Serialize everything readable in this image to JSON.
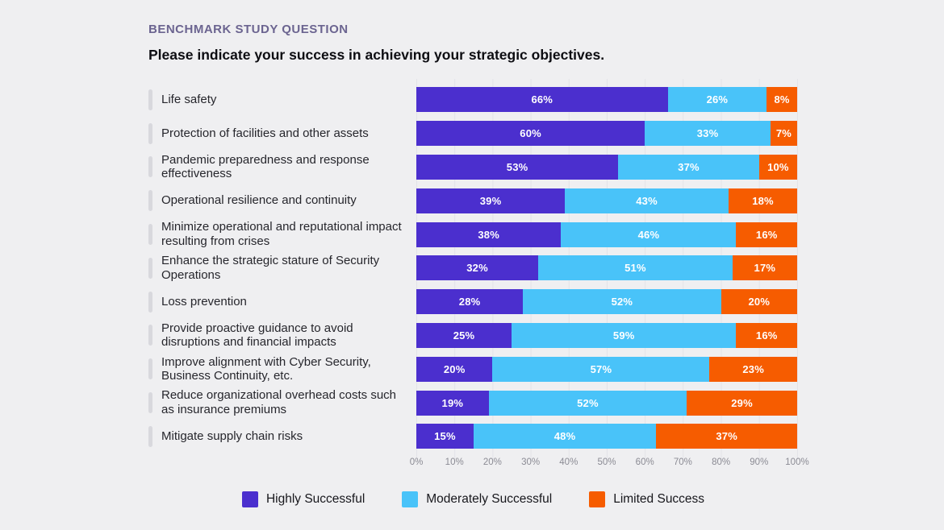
{
  "page": {
    "background": "#EFEFF1"
  },
  "header": {
    "eyebrow": "BENCHMARK STUDY QUESTION",
    "title": "Please indicate your success in achieving your strategic objectives."
  },
  "chart_data": {
    "type": "bar",
    "orientation": "horizontal",
    "stacked": true,
    "title": "Please indicate your success in achieving your strategic objectives.",
    "categories": [
      "Life safety",
      "Protection of facilities and other assets",
      "Pandemic preparedness and response effectiveness",
      "Operational resilience and continuity",
      "Minimize operational and reputational impact resulting from crises",
      "Enhance the strategic stature of Security Operations",
      "Loss prevention",
      "Provide proactive guidance to avoid disruptions and financial impacts",
      "Improve alignment with Cyber Security, Business Continuity, etc.",
      "Reduce organizational overhead costs such as insurance premiums",
      "Mitigate supply chain risks"
    ],
    "series": [
      {
        "name": "Highly Successful",
        "color": "#4B2FCE",
        "values": [
          66,
          60,
          53,
          39,
          38,
          32,
          28,
          25,
          20,
          19,
          15
        ]
      },
      {
        "name": "Moderately Successful",
        "color": "#49C3F9",
        "values": [
          26,
          33,
          37,
          43,
          46,
          51,
          52,
          59,
          57,
          52,
          48
        ]
      },
      {
        "name": "Limited Success",
        "color": "#F65C00",
        "values": [
          8,
          7,
          10,
          18,
          16,
          17,
          20,
          16,
          23,
          29,
          37
        ]
      }
    ],
    "value_suffix": "%",
    "x_ticks": [
      "0%",
      "10%",
      "20%",
      "30%",
      "40%",
      "50%",
      "60%",
      "70%",
      "80%",
      "90%",
      "100%"
    ],
    "xlim": [
      0,
      100
    ],
    "grid": "vertical",
    "legend_position": "bottom"
  }
}
